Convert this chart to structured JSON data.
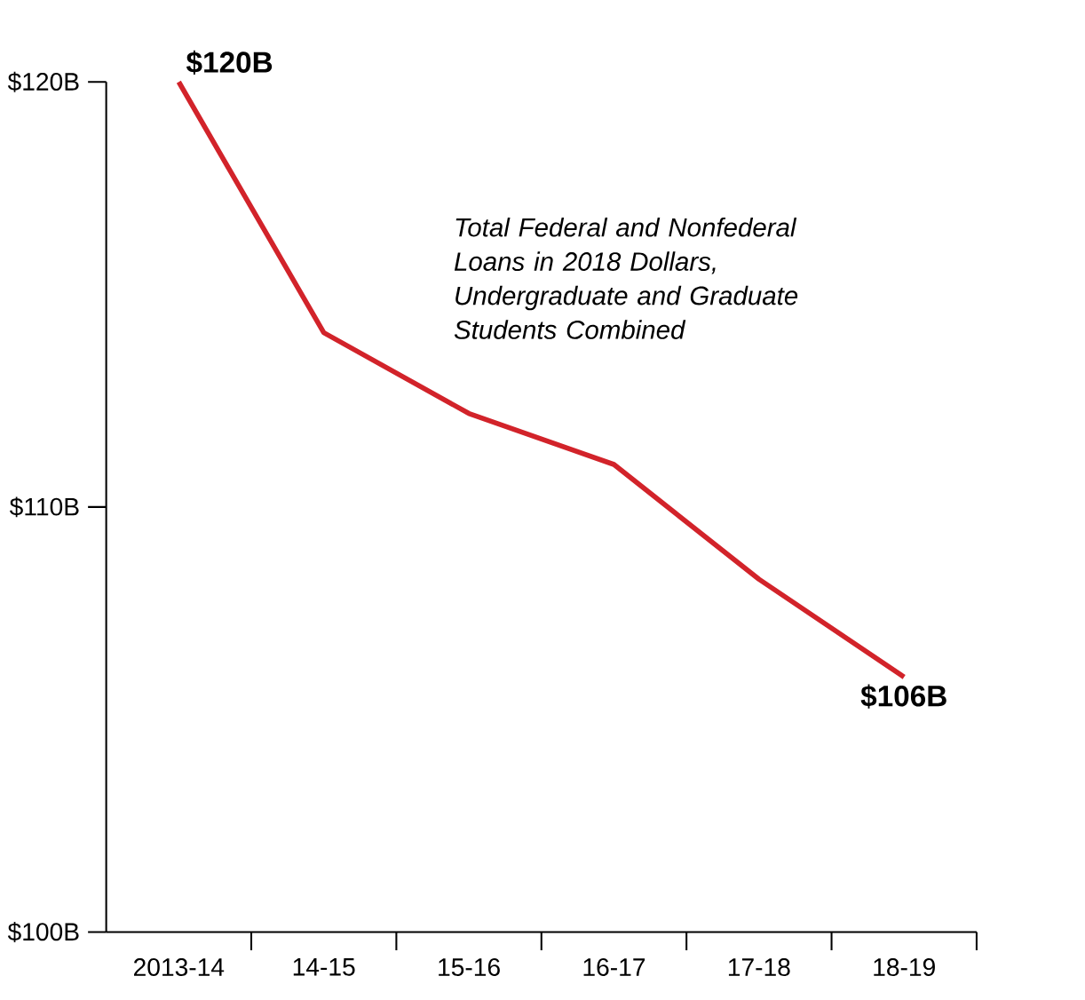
{
  "chart_data": {
    "type": "line",
    "categories": [
      "2013-14",
      "14-15",
      "15-16",
      "16-17",
      "17-18",
      "18-19"
    ],
    "series": [
      {
        "color": "#d2232a",
        "values": [
          120,
          114.1,
          112.2,
          111.0,
          108.3,
          106.0
        ],
        "value_labels": [
          "$120B",
          null,
          null,
          null,
          null,
          "$106B"
        ]
      }
    ],
    "ylim": [
      100,
      120
    ],
    "yticks": [
      {
        "value": 100,
        "label": "$100B"
      },
      {
        "value": 110,
        "label": "$110B"
      },
      {
        "value": 120,
        "label": "$120B"
      }
    ],
    "annotations": [
      "Total Federal and Nonfederal Loans in 2018 Dollars, Undergraduate and Graduate Students Combined"
    ],
    "grid": false,
    "marker": "none",
    "line_style": "solid"
  }
}
